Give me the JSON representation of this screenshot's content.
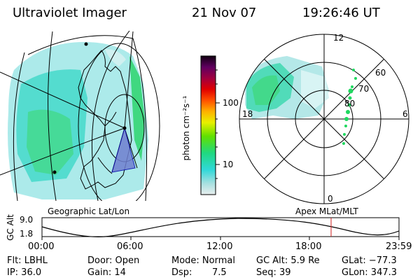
{
  "header": {
    "instrument": "Ultraviolet Imager",
    "date": "21 Nov 07",
    "time": "19:26:46 UT"
  },
  "colorbar": {
    "unit_label": "photon cm⁻²s⁻¹",
    "ticks": [
      "100",
      "10"
    ]
  },
  "polar_plot": {
    "mlt_labels": [
      "12",
      "18",
      "6",
      "0"
    ],
    "lat_labels": [
      "60",
      "70",
      "80"
    ],
    "caption": "Apex MLat/MLT"
  },
  "geo_plot": {
    "caption": "Geographic Lat/Lon"
  },
  "altitude_plot": {
    "axis_label": "GC Alt",
    "y_ticks": [
      "9.0",
      "1.8"
    ],
    "x_ticks": [
      "00:00",
      "06:00",
      "12:00",
      "18:00",
      "23:59"
    ]
  },
  "footer": {
    "filter": "Flt: LBHL",
    "ip": "IP: 36.0",
    "door": "Door: Open",
    "gain": "Gain: 14",
    "mode": "Mode: Normal",
    "dsp_label": "Dsp:",
    "dsp_value": "7.5",
    "gc_alt": "GC Alt: 5.9 Re",
    "seq": "Seq: 39",
    "glat": "GLat: −77.3",
    "glon": "GLon: 347.3"
  }
}
